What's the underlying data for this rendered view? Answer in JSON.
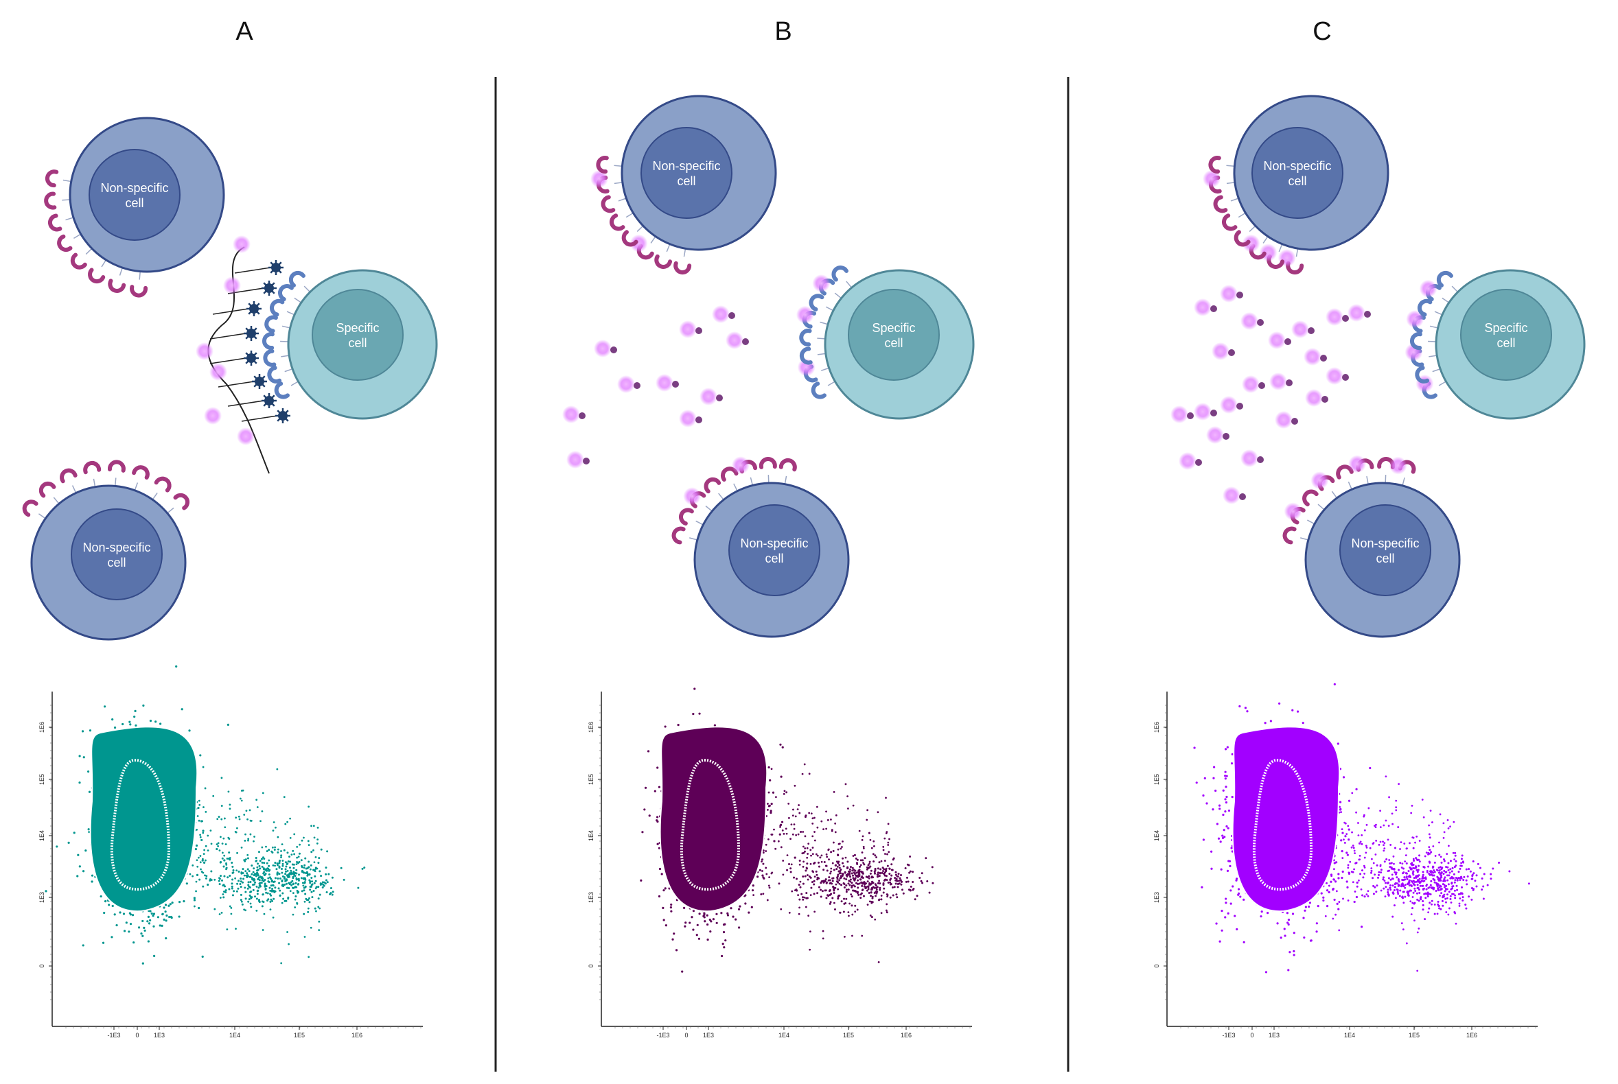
{
  "panels": [
    {
      "title": "A",
      "color": "#00968f",
      "cells": {
        "nonspecific_top": "Non-specific cell",
        "specific": "Specific cell",
        "nonspecific_bottom": "Non-specific cell"
      }
    },
    {
      "title": "B",
      "color": "#5e0057",
      "cells": {
        "nonspecific_top": "Non-specific cell",
        "specific": "Specific cell",
        "nonspecific_bottom": "Non-specific cell"
      }
    },
    {
      "title": "C",
      "color": "#a200ff",
      "cells": {
        "nonspecific_top": "Non-specific cell",
        "specific": "Specific cell",
        "nonspecific_bottom": "Non-specific cell"
      }
    }
  ],
  "colors": {
    "nonspecific_outer": "#8aa0c8",
    "nonspecific_inner": "#5a73ab",
    "specific_outer": "#9ecfd8",
    "specific_inner": "#6aa7b2",
    "magenta_receptor": "#a4387e",
    "blue_receptor": "#5c7fbf",
    "bead_glow": "#e07bff",
    "bead_core": "#7a3e82",
    "virus": "#1f3f6b"
  },
  "icons": [
    "y-shaped-receptor-icon",
    "glowing-bead-icon",
    "virus-particle-icon"
  ],
  "chart_data": [
    {
      "type": "scatter",
      "title": "A",
      "x_ticks": [
        "-1E3",
        "0",
        "1E3",
        "1E4",
        "1E5",
        "1E6"
      ],
      "y_ticks": [
        "0",
        "1E3",
        "1E4",
        "1E5",
        "1E6"
      ],
      "color": "#00968f",
      "series": [
        {
          "values": {
            "x_center": "~5E2",
            "y_center": "~1.5E4"
          }
        },
        {
          "values": {
            "x_center": "~3E4",
            "y_center": "~3E3"
          }
        }
      ]
    },
    {
      "type": "scatter",
      "title": "B",
      "x_ticks": [
        "-1E3",
        "0",
        "1E3",
        "1E4",
        "1E5",
        "1E6"
      ],
      "y_ticks": [
        "0",
        "1E3",
        "1E4",
        "1E5",
        "1E6"
      ],
      "color": "#5e0057",
      "series": [
        {
          "values": {
            "x_center": "~1E3",
            "y_center": "~1E4"
          }
        },
        {
          "values": {
            "x_center": "~5E4",
            "y_center": "~3E3"
          }
        }
      ]
    },
    {
      "type": "scatter",
      "title": "C",
      "x_ticks": [
        "-1E3",
        "0",
        "1E3",
        "1E4",
        "1E5",
        "1E6"
      ],
      "y_ticks": [
        "0",
        "1E3",
        "1E4",
        "1E5",
        "1E6"
      ],
      "color": "#a200ff",
      "series": [
        {
          "values": {
            "x_center": "~2E3",
            "y_center": "~1E4"
          }
        },
        {
          "values": {
            "x_center": "~1E5",
            "y_center": "~3E3"
          }
        }
      ]
    }
  ]
}
